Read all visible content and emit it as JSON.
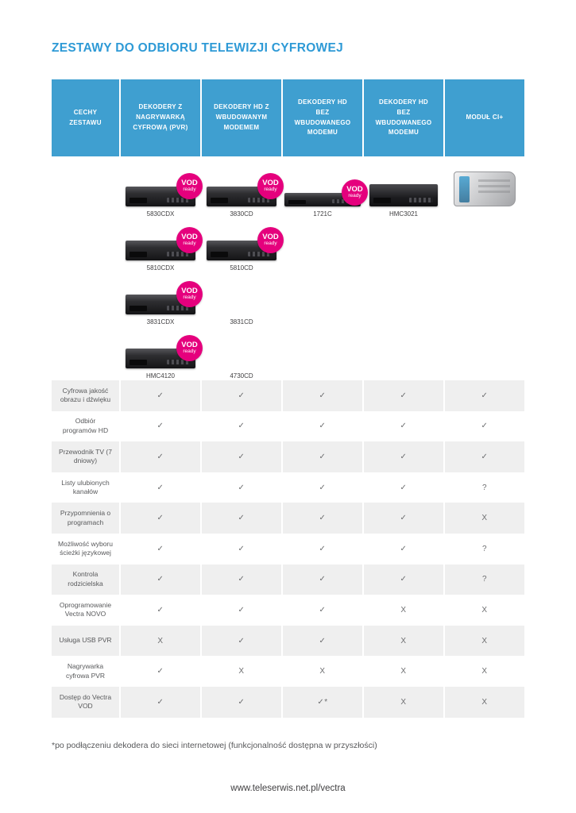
{
  "page": {
    "title": "ZESTAWY DO ODBIORU TELEWIZJI CYFROWEJ",
    "footnote": "*po podłączeniu dekodera do sieci internetowej (funkcjonalność dostępna w przyszłości)",
    "footer": "www.teleserwis.net.pl/vectra"
  },
  "colors": {
    "accent_blue": "#2e9ad6",
    "header_blue": "#3f9fd0",
    "badge_pink": "#e5007d",
    "row_alt_gray": "#efefef",
    "text_gray": "#58595b"
  },
  "table": {
    "columns": [
      "CECHY ZESTAWU",
      "DEKODERY Z NAGRYWARKĄ CYFROWĄ (PVR)",
      "DEKODERY HD Z WBUDOWANYM MODEMEM",
      "DEKODERY HD BEZ WBUDOWANEGO MODEMU",
      "DEKODERY HD BEZ WBUDOWANEGO MODEMU",
      "MODUŁ CI+"
    ],
    "vod_badge": {
      "line1": "VOD",
      "line2": "ready"
    },
    "product_columns": [
      [
        {
          "model": "5830CDX",
          "device": "decoder",
          "vod": true
        },
        {
          "model": "5810CDX",
          "device": "decoder",
          "vod": true
        },
        {
          "model": "3831CDX",
          "device": "decoder",
          "vod": true
        },
        {
          "model": "HMC4120",
          "device": "decoder",
          "vod": true
        }
      ],
      [
        {
          "model": "3830CD",
          "device": "decoder",
          "vod": true
        },
        {
          "model": "5810CD",
          "device": "decoder",
          "vod": true
        },
        {
          "model": "3831CD",
          "device": "none",
          "vod": false
        },
        {
          "model": "4730CD",
          "device": "none",
          "vod": false
        }
      ],
      [
        {
          "model": "1721C",
          "device": "decoder-slim",
          "vod": true
        }
      ],
      [
        {
          "model": "HMC3021",
          "device": "decoder-box",
          "vod": false
        }
      ],
      [
        {
          "model": "",
          "device": "ci-card",
          "vod": false
        }
      ]
    ],
    "features": [
      {
        "label": "Cyfrowa jakość obrazu i dźwięku",
        "values": [
          "✓",
          "✓",
          "✓",
          "✓",
          "✓"
        ]
      },
      {
        "label": "Odbiór programów HD",
        "values": [
          "✓",
          "✓",
          "✓",
          "✓",
          "✓"
        ]
      },
      {
        "label": "Przewodnik TV (7 dniowy)",
        "values": [
          "✓",
          "✓",
          "✓",
          "✓",
          "✓"
        ]
      },
      {
        "label": "Listy ulubionych kanałów",
        "values": [
          "✓",
          "✓",
          "✓",
          "✓",
          "?"
        ]
      },
      {
        "label": "Przypomnienia o programach",
        "values": [
          "✓",
          "✓",
          "✓",
          "✓",
          "X"
        ]
      },
      {
        "label": "Możliwość wyboru ścieżki językowej",
        "values": [
          "✓",
          "✓",
          "✓",
          "✓",
          "?"
        ]
      },
      {
        "label": "Kontrola rodzicielska",
        "values": [
          "✓",
          "✓",
          "✓",
          "✓",
          "?"
        ]
      },
      {
        "label": "Oprogramowanie Vectra NOVO",
        "values": [
          "✓",
          "✓",
          "✓",
          "X",
          "X"
        ]
      },
      {
        "label": "Usługa USB PVR",
        "values": [
          "X",
          "✓",
          "✓",
          "X",
          "X"
        ]
      },
      {
        "label": "Nagrywarka cyfrowa PVR",
        "values": [
          "✓",
          "X",
          "X",
          "X",
          "X"
        ]
      },
      {
        "label": "Dostęp do Vectra VOD",
        "values": [
          "✓",
          "✓",
          "✓*",
          "X",
          "X"
        ]
      }
    ]
  }
}
